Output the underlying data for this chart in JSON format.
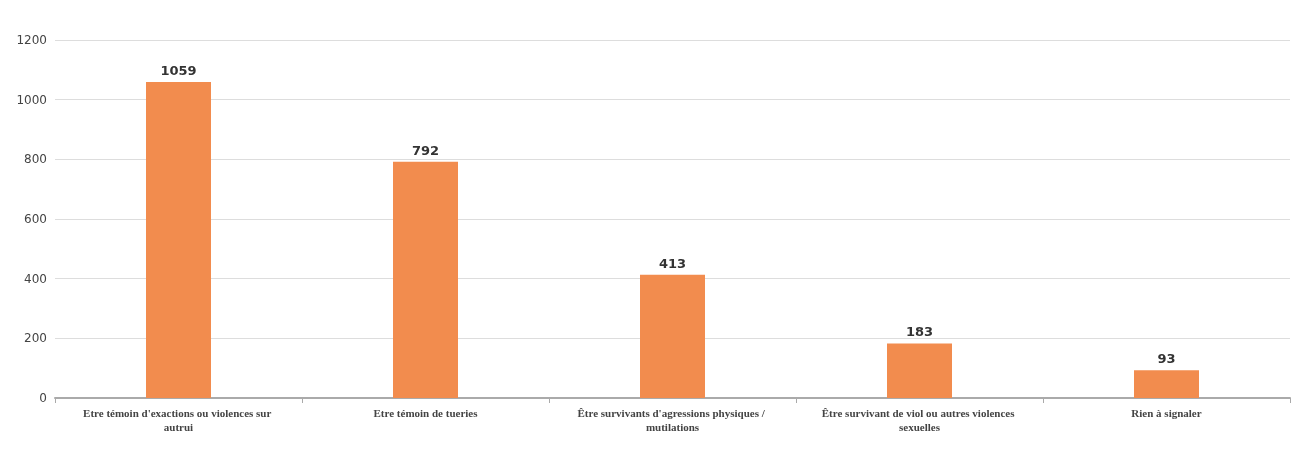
{
  "chart_data": {
    "type": "bar",
    "categories": [
      "Etre témoin d'exactions ou violences sur autrui",
      "Etre témoin de tueries",
      "Être survivants d'agressions physiques / mutilations",
      "Être survivant de viol ou autres violences sexuelles",
      "Rien à signaler"
    ],
    "values": [
      1059,
      792,
      413,
      183,
      93
    ],
    "color": "#f28c4e",
    "ylim": [
      0,
      1200
    ],
    "yticks": [
      0,
      200,
      400,
      600,
      800,
      1000,
      1200
    ],
    "grid": "y",
    "data_labels": true
  }
}
